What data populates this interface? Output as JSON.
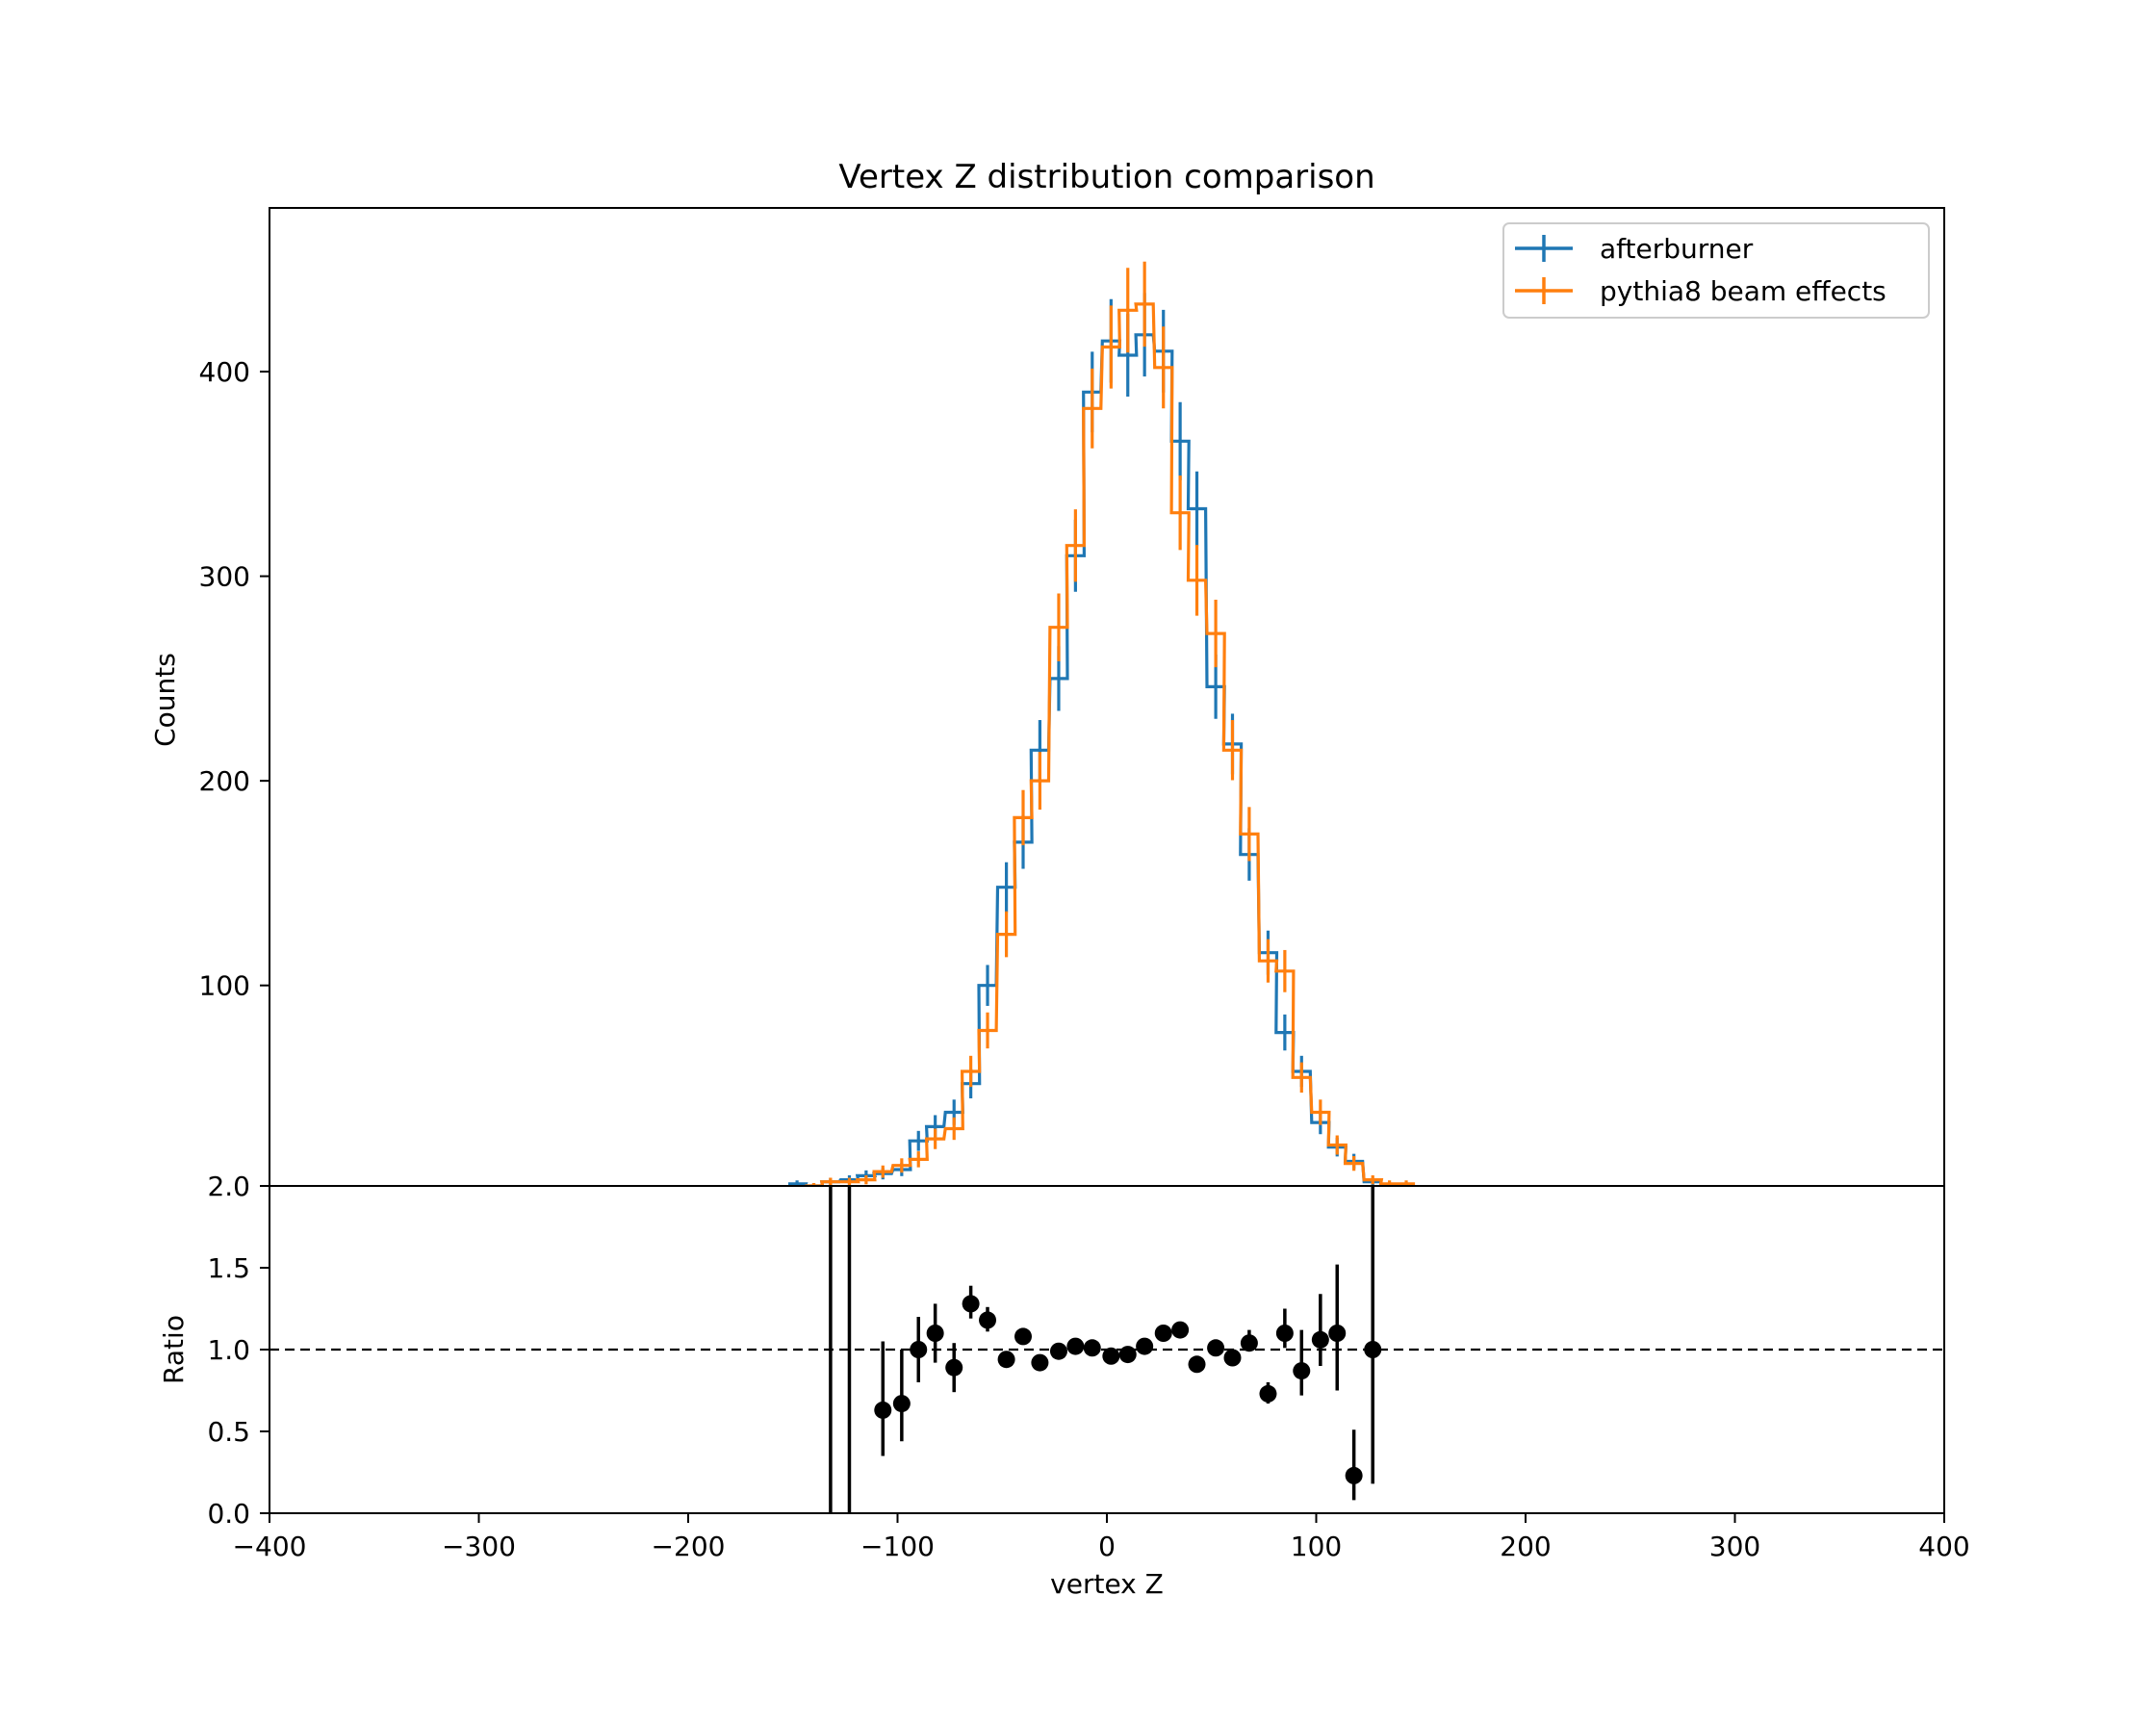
{
  "chart_data": {
    "type": "line",
    "title": "Vertex Z distribution comparison",
    "xlabel": "vertex Z",
    "xlim": [
      -400,
      400
    ],
    "xticks": [
      -400,
      -300,
      -200,
      -100,
      0,
      100,
      200,
      300,
      400
    ],
    "xtick_labels": [
      "−400",
      "−300",
      "−200",
      "−100",
      "0",
      "100",
      "200",
      "300",
      "400"
    ],
    "main": {
      "ylabel": "Counts",
      "ylim": [
        2,
        480
      ],
      "yticks": [
        100,
        200,
        300,
        400
      ],
      "ytick_labels": [
        "100",
        "200",
        "300",
        "400"
      ],
      "legend_location": "upper right",
      "bin_width": 8.33,
      "series": [
        {
          "name": "afterburner",
          "color": "#1f77b4",
          "bin_centers": [
            -148,
            -140,
            -132,
            -123,
            -115,
            -107,
            -98,
            -90,
            -82,
            -73,
            -65,
            -57,
            -48,
            -40,
            -32,
            -23,
            -15,
            -7,
            2,
            10,
            18,
            27,
            35,
            43,
            52,
            60,
            68,
            77,
            85,
            93,
            102,
            110,
            118,
            127
          ],
          "values": [
            3,
            2,
            4,
            5,
            7,
            8,
            10,
            24,
            31,
            38,
            52,
            100,
            148,
            170,
            215,
            250,
            310,
            390,
            415,
            408,
            418,
            410,
            366,
            333,
            246,
            218,
            164,
            116,
            77,
            58,
            33,
            21,
            14,
            4
          ],
          "errors": [
            1.7,
            1.4,
            2,
            2.2,
            2.6,
            2.8,
            3.2,
            4.9,
            5.6,
            6.2,
            7.2,
            10,
            12.2,
            13,
            14.7,
            15.8,
            17.6,
            19.7,
            20.4,
            20.2,
            20.4,
            20.2,
            19.1,
            18.2,
            15.7,
            14.8,
            12.8,
            10.8,
            8.8,
            7.6,
            5.7,
            4.6,
            3.7,
            2
          ]
        },
        {
          "name": "pythia8 beam effects",
          "color": "#ff7f0e",
          "bin_centers": [
            -140,
            -132,
            -123,
            -115,
            -107,
            -98,
            -90,
            -82,
            -73,
            -65,
            -57,
            -48,
            -40,
            -32,
            -23,
            -15,
            -7,
            2,
            10,
            18,
            27,
            35,
            43,
            52,
            60,
            68,
            77,
            85,
            93,
            102,
            110,
            118,
            127,
            135,
            143
          ],
          "values": [
            2,
            4,
            4,
            5,
            9,
            12,
            15,
            25,
            30,
            58,
            78,
            125,
            182,
            200,
            275,
            315,
            382,
            412,
            430,
            433,
            402,
            331,
            298,
            272,
            215,
            174,
            112,
            107,
            55,
            38,
            22,
            13,
            5,
            3,
            3
          ],
          "errors": [
            1.4,
            2,
            2,
            2.2,
            3,
            3.5,
            3.9,
            5,
            5.5,
            7.6,
            8.8,
            11.2,
            13.5,
            14.1,
            16.6,
            17.7,
            19.5,
            20.3,
            20.7,
            20.8,
            20,
            18.2,
            17.3,
            16.5,
            14.7,
            13.2,
            10.6,
            10.3,
            7.4,
            6.2,
            4.7,
            3.6,
            2.2,
            1.7,
            1.7
          ]
        }
      ]
    },
    "ratio": {
      "ylabel": "Ratio",
      "ylim": [
        0,
        2
      ],
      "yticks": [
        0,
        0.5,
        1,
        1.5,
        2
      ],
      "ytick_labels": [
        "0.0",
        "0.5",
        "1.0",
        "1.5",
        "2.0"
      ],
      "reference_line": 1.0,
      "x": [
        -132,
        -123,
        -107,
        -98,
        -90,
        -82,
        -73,
        -65,
        -57,
        -48,
        -40,
        -32,
        -23,
        -15,
        -7,
        2,
        10,
        18,
        27,
        35,
        43,
        52,
        60,
        68,
        77,
        85,
        93,
        102,
        110,
        118,
        127
      ],
      "values": [
        null,
        null,
        0.63,
        0.67,
        1.0,
        1.1,
        0.89,
        1.28,
        1.18,
        0.94,
        1.08,
        0.92,
        0.99,
        1.02,
        1.01,
        0.96,
        0.97,
        1.02,
        1.1,
        1.12,
        0.91,
        1.01,
        0.95,
        1.04,
        0.73,
        1.1,
        0.87,
        1.06,
        1.1,
        0.23,
        1.0
      ],
      "err_low": [
        0.62,
        0.65,
        0.28,
        0.23,
        0.2,
        0.18,
        0.15,
        0.09,
        0.07,
        0.05,
        0.05,
        0.04,
        0.04,
        0.03,
        0.03,
        0.03,
        0.03,
        0.03,
        0.03,
        0.03,
        0.04,
        0.04,
        0.04,
        0.05,
        0.06,
        0.09,
        0.15,
        0.16,
        0.35,
        0.15,
        0.82
      ],
      "err_high": [
        2.0,
        2.0,
        0.42,
        0.33,
        0.2,
        0.18,
        0.15,
        0.11,
        0.08,
        0.05,
        0.05,
        0.04,
        0.04,
        0.03,
        0.03,
        0.03,
        0.03,
        0.03,
        0.03,
        0.03,
        0.04,
        0.04,
        0.04,
        0.08,
        0.07,
        0.15,
        0.25,
        0.28,
        0.42,
        0.28,
        1.0
      ]
    }
  }
}
